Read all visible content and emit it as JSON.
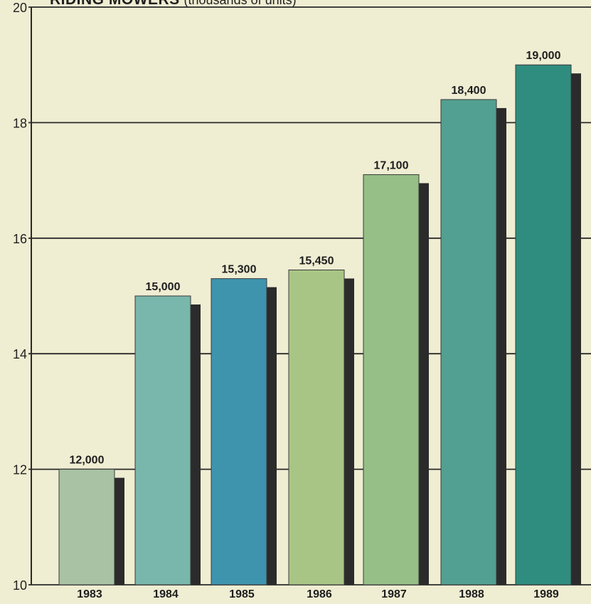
{
  "chart_data": {
    "type": "bar",
    "title": "RIDING MOWERS",
    "subtitle": "(thousands of units)",
    "categories": [
      "1983",
      "1984",
      "1985",
      "1986",
      "1987",
      "1988",
      "1989"
    ],
    "values": [
      12.0,
      15.0,
      15.3,
      15.45,
      17.1,
      18.4,
      19.0
    ],
    "data_labels": [
      "12,000",
      "15,000",
      "15,300",
      "15,450",
      "17,100",
      "18,400",
      "19,000"
    ],
    "y_ticks": [
      "10",
      "12",
      "14",
      "16",
      "18",
      "20"
    ],
    "ylim": [
      10,
      20
    ],
    "grid": true,
    "legend": "none",
    "bar_colors": [
      "#a8c2a3",
      "#79b6ab",
      "#3e94ad",
      "#a9c586",
      "#95bf86",
      "#52a091",
      "#2f8d80"
    ],
    "shadow_color": "#2b2b2b",
    "background_color": "#efedd2",
    "gridline_color": "#2a2a2a"
  }
}
